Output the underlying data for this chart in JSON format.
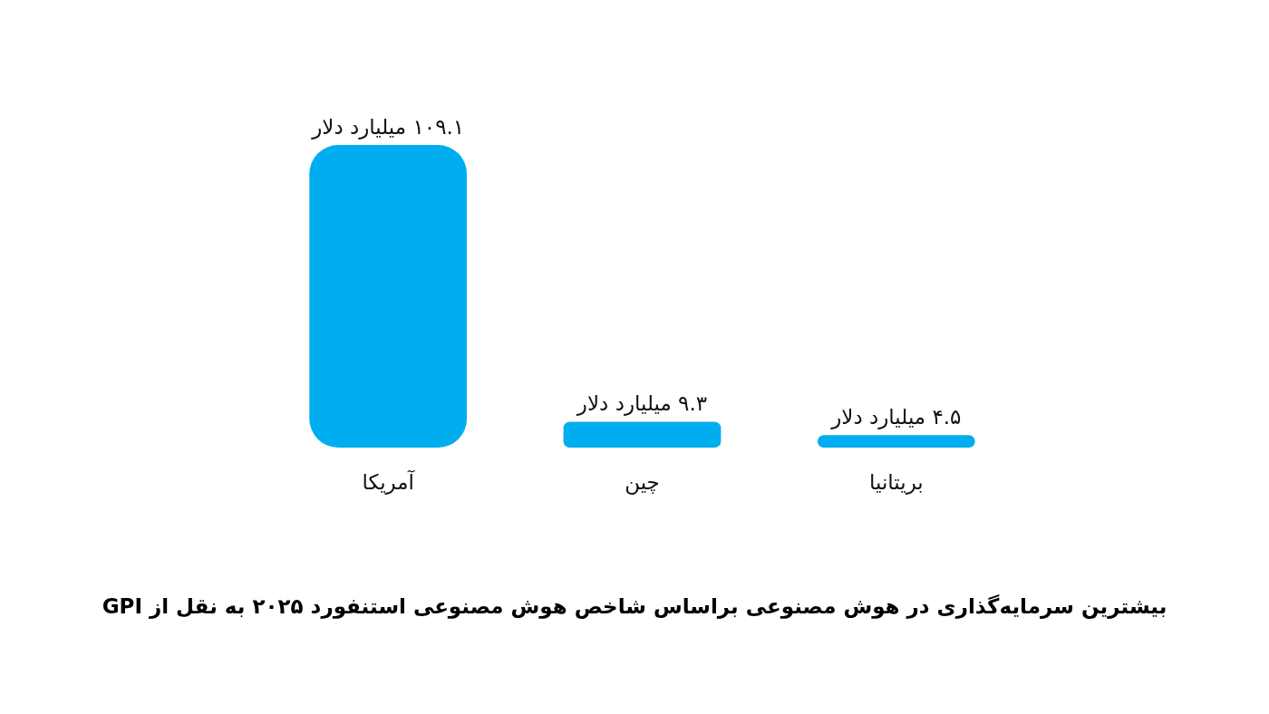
{
  "chart_data": {
    "type": "bar",
    "title": "بیشترین سرمایه‌گذاری در هوش مصنوعی براساس شاخص هوش مصنوعی استنفورد ۲۰۲۵ به نقل از GPI",
    "categories": [
      "آمریکا",
      "چین",
      "بریتانیا"
    ],
    "values": [
      109.1,
      9.3,
      4.5
    ],
    "value_labels": [
      "۱۰۹.۱ میلیارد دلار",
      "۹.۳ میلیارد دلار",
      "۴.۵ میلیارد دلار"
    ],
    "color": "#00aeef"
  }
}
